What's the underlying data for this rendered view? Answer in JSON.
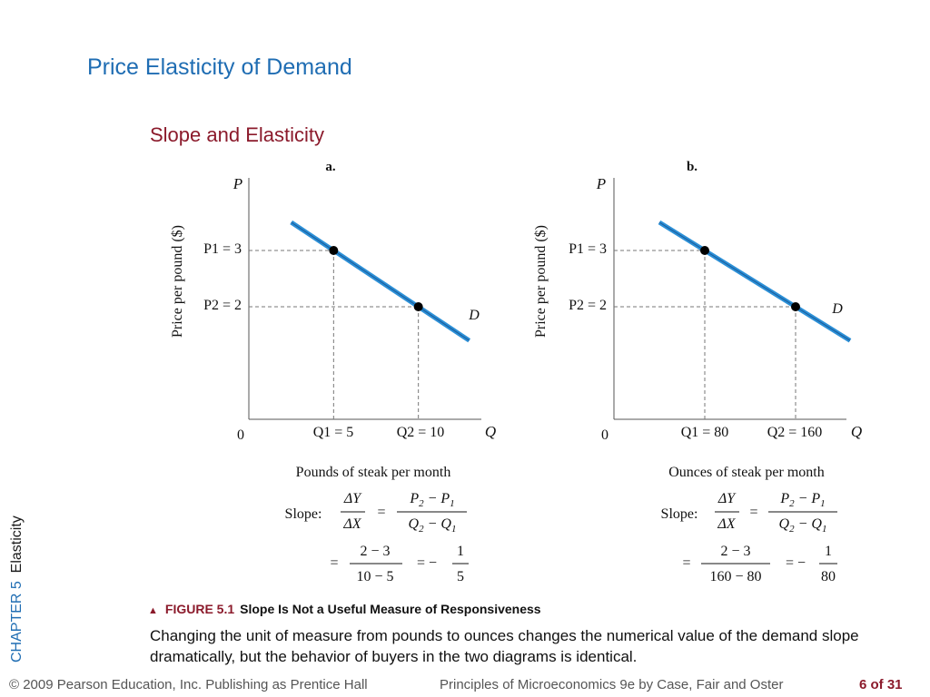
{
  "header": {
    "title": "Price Elasticity of Demand",
    "subtitle": "Slope and Elasticity"
  },
  "side_label": {
    "chapter": "CHAPTER 5",
    "topic": "Elasticity"
  },
  "figure": {
    "marker": "▲",
    "number": "FIGURE 5.1",
    "title": "Slope Is Not a Useful Measure of Responsiveness",
    "description": "Changing the unit of measure from pounds to ounces changes the numerical value of the demand slope dramatically, but the behavior of buyers in the two diagrams is identical."
  },
  "footer": {
    "copyright": "© 2009 Pearson Education, Inc. Publishing as Prentice Hall",
    "book": "Principles of Microeconomics 9e by Case, Fair and Oster",
    "page": "6 of 31"
  },
  "colors": {
    "title": "#1f6db3",
    "subtitle": "#8b1a2b",
    "demand_line": "#2b8fd6"
  },
  "chart_data": [
    {
      "type": "line",
      "panel": "a.",
      "y_axis_letter": "P",
      "x_axis_letter": "Q",
      "origin": "0",
      "ylabel": "Price per pound ($)",
      "xlabel": "Pounds of steak per month",
      "curve_label": "D",
      "p1_label": "P1 = 3",
      "p2_label": "P2 = 2",
      "q1_label": "Q1 = 5",
      "q2_label": "Q2 = 10",
      "points": [
        {
          "x": 5,
          "y": 3
        },
        {
          "x": 10,
          "y": 2
        }
      ],
      "xlim": [
        0,
        15
      ],
      "ylim": [
        0,
        4
      ],
      "slope_word": "Slope:",
      "calc": {
        "num": "2 − 3",
        "den": "10 − 5",
        "result_num": "1",
        "result_den": "5"
      }
    },
    {
      "type": "line",
      "panel": "b.",
      "y_axis_letter": "P",
      "x_axis_letter": "Q",
      "origin": "0",
      "ylabel": "Price per pound ($)",
      "xlabel": "Ounces of steak per month",
      "curve_label": "D",
      "p1_label": "P1 = 3",
      "p2_label": "P2 = 2",
      "q1_label": "Q1 = 80",
      "q2_label": "Q2 = 160",
      "points": [
        {
          "x": 80,
          "y": 3
        },
        {
          "x": 160,
          "y": 2
        }
      ],
      "xlim": [
        0,
        240
      ],
      "ylim": [
        0,
        4
      ],
      "slope_word": "Slope:",
      "calc": {
        "num": "2 − 3",
        "den": "160 − 80",
        "result_num": "1",
        "result_den": "80"
      }
    }
  ]
}
